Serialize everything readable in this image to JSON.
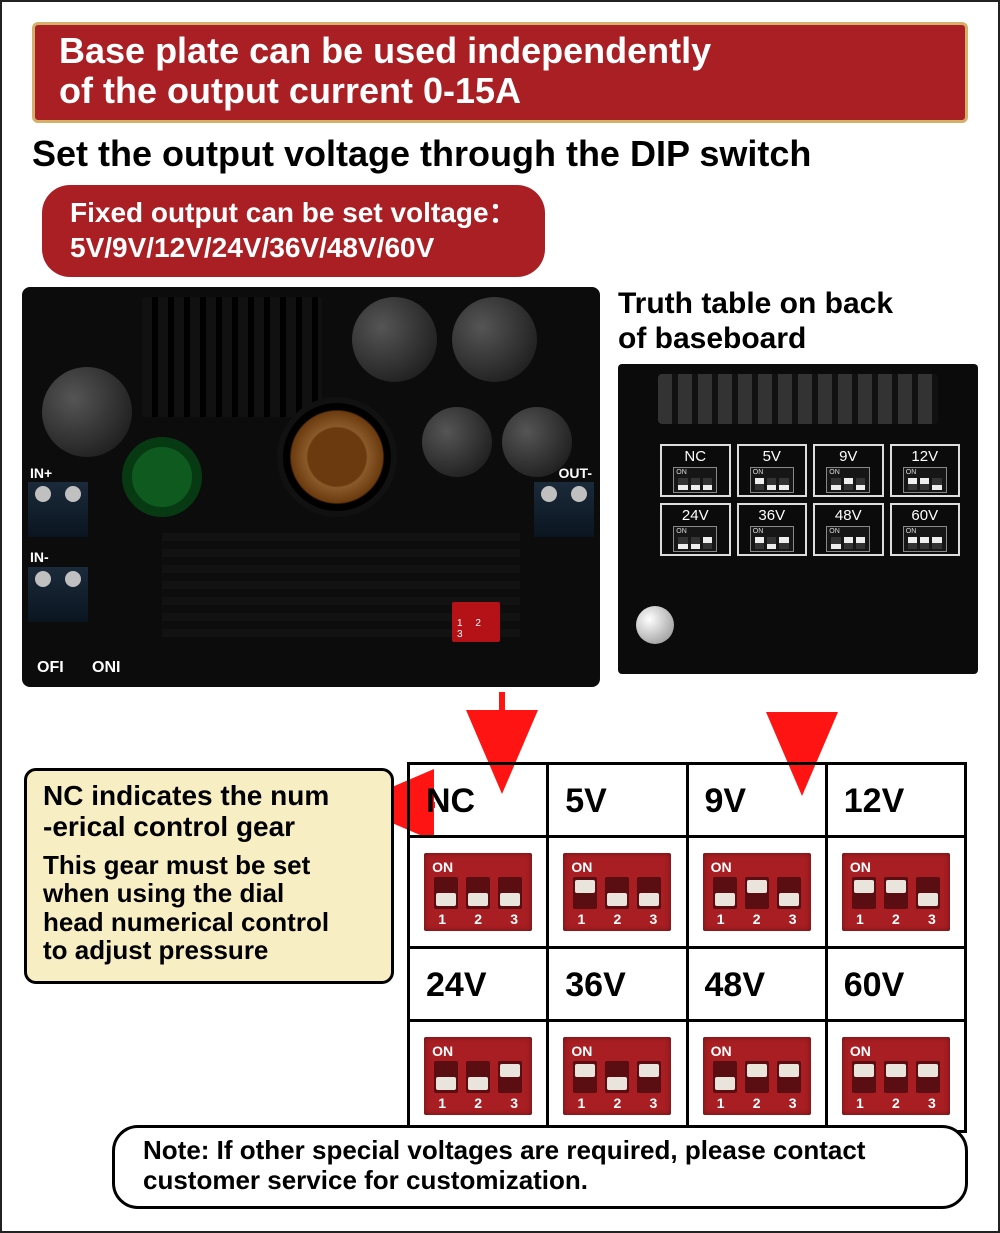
{
  "colors": {
    "banner_bg": "#a91f24",
    "banner_border": "#d4b068",
    "text_white": "#ffffff",
    "text_black": "#000000",
    "dip_red": "#a81e22",
    "callout_bg": "#f8eec4",
    "pcb_bg": "#0c0c0c",
    "arrow_red": "#ff1414"
  },
  "banner": {
    "line1": "Base plate can be used independently",
    "line2": "of the output current 0-15A"
  },
  "subhead": "Set the output voltage through the DIP switch",
  "voltages_pill": {
    "line1": "Fixed output can be set voltage：",
    "line2": "5V/9V/12V/24V/36V/48V/60V"
  },
  "truth_caption": {
    "line1": "Truth table on back",
    "line2": "of baseboard"
  },
  "pcb_labels": {
    "in_plus": "IN+",
    "in_minus": "IN-",
    "out": "OUT-",
    "off": "OFI",
    "on": "ONI"
  },
  "back_board_cells": [
    {
      "label": "NC",
      "pos": [
        "dn",
        "dn",
        "dn"
      ]
    },
    {
      "label": "5V",
      "pos": [
        "up",
        "dn",
        "dn"
      ]
    },
    {
      "label": "9V",
      "pos": [
        "dn",
        "up",
        "dn"
      ]
    },
    {
      "label": "12V",
      "pos": [
        "up",
        "up",
        "dn"
      ]
    },
    {
      "label": "24V",
      "pos": [
        "dn",
        "dn",
        "up"
      ]
    },
    {
      "label": "36V",
      "pos": [
        "up",
        "dn",
        "up"
      ]
    },
    {
      "label": "48V",
      "pos": [
        "dn",
        "up",
        "up"
      ]
    },
    {
      "label": "60V",
      "pos": [
        "up",
        "up",
        "up"
      ]
    }
  ],
  "big_table": {
    "row1_labels": [
      "NC",
      "5V",
      "9V",
      "12V"
    ],
    "row1_pos": [
      [
        "dn",
        "dn",
        "dn"
      ],
      [
        "up",
        "dn",
        "dn"
      ],
      [
        "dn",
        "up",
        "dn"
      ],
      [
        "up",
        "up",
        "dn"
      ]
    ],
    "row2_labels": [
      "24V",
      "36V",
      "48V",
      "60V"
    ],
    "row2_pos": [
      [
        "dn",
        "dn",
        "up"
      ],
      [
        "up",
        "dn",
        "up"
      ],
      [
        "dn",
        "up",
        "up"
      ],
      [
        "up",
        "up",
        "up"
      ]
    ]
  },
  "dip_text": {
    "on": "ON",
    "n1": "1",
    "n2": "2",
    "n3": "3"
  },
  "nc_callout": {
    "t1a": "NC indicates the num",
    "t1b": "-erical control gear",
    "t2a": "This gear must be set",
    "t2b": "when using the dial",
    "t2c": "head numerical control",
    "t2d": "to adjust pressure"
  },
  "footnote": {
    "line1": "Note: If other special voltages are required, please contact",
    "line2": "customer service for customization."
  }
}
